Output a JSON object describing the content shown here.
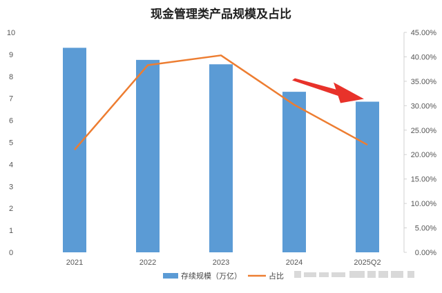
{
  "chart_data": {
    "type": "bar",
    "title": "现金管理类产品规模及占比",
    "categories": [
      "2021",
      "2022",
      "2023",
      "2024",
      "2025Q2"
    ],
    "series": [
      {
        "name": "存续规模（万亿）",
        "type": "bar",
        "axis": "left",
        "color": "#5b9bd5",
        "values": [
          9.3,
          8.75,
          8.55,
          7.3,
          6.85
        ]
      },
      {
        "name": "占比",
        "type": "line",
        "axis": "right",
        "color": "#ed7d31",
        "values": [
          21.0,
          38.3,
          40.3,
          30.2,
          22.0
        ]
      }
    ],
    "left_axis": {
      "min": 0,
      "max": 10,
      "step": 1,
      "ticks": [
        "0",
        "1",
        "2",
        "3",
        "4",
        "5",
        "6",
        "7",
        "8",
        "9",
        "10"
      ]
    },
    "right_axis": {
      "min": 0,
      "max": 45,
      "step": 5,
      "unit": "%",
      "ticks": [
        "0.00%",
        "5.00%",
        "10.00%",
        "15.00%",
        "20.00%",
        "25.00%",
        "30.00%",
        "35.00%",
        "40.00%",
        "45.00%"
      ]
    },
    "grid": false,
    "legend_position": "bottom",
    "annotation": {
      "type": "arrow",
      "color": "#e8322a",
      "points_to": "2025Q2"
    }
  }
}
